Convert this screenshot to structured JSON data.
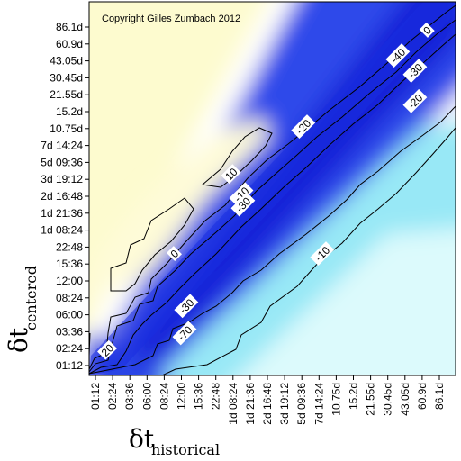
{
  "chart_data": {
    "type": "heatmap",
    "title": "",
    "copyright": "Copyright Gilles Zumbach 2012",
    "xlabel": {
      "symbol": "δt",
      "subscript": "historical"
    },
    "ylabel": {
      "symbol": "δt",
      "subscript": "centered"
    },
    "x_ticks": [
      "01:12",
      "02:24",
      "03:36",
      "06:00",
      "08:24",
      "12:00",
      "15:36",
      "22:48",
      "1d 08:24",
      "1d 21:36",
      "2d 16:48",
      "3d 19:12",
      "5d 09:36",
      "7d 14:24",
      "10.75d",
      "15.2d",
      "21.55d",
      "30.45d",
      "43.05d",
      "60.9d",
      "86.1d"
    ],
    "y_ticks": [
      "01:12",
      "02:24",
      "03:36",
      "06:00",
      "08:24",
      "12:00",
      "15:36",
      "22:48",
      "1d 08:24",
      "1d 21:36",
      "2d 16:48",
      "3d 19:12",
      "5d 09:36",
      "7d 14:24",
      "10.75d",
      "15.2d",
      "21.55d",
      "30.45d",
      "43.05d",
      "60.9d",
      "86.1d"
    ],
    "contour_levels": [
      -40,
      -30,
      -20,
      -10,
      0,
      10,
      20
    ],
    "contour_labels": [
      {
        "text": "0",
        "x": 19.3,
        "y": 19.8
      },
      {
        "text": "-40",
        "x": 17.6,
        "y": 18.3
      },
      {
        "text": "-30",
        "x": 18.6,
        "y": 17.4
      },
      {
        "text": "-20",
        "x": 18.6,
        "y": 15.6
      },
      {
        "text": "-20",
        "x": 12.1,
        "y": 14.1
      },
      {
        "text": "10",
        "x": 7.9,
        "y": 11.3
      },
      {
        "text": "-10",
        "x": 8.5,
        "y": 10.1
      },
      {
        "text": "-30",
        "x": 8.6,
        "y": 9.5
      },
      {
        "text": "0",
        "x": 4.6,
        "y": 6.6
      },
      {
        "text": "-10",
        "x": 13.2,
        "y": 6.6
      },
      {
        "text": "-30",
        "x": 5.3,
        "y": 3.5
      },
      {
        "text": "-70",
        "x": 5.2,
        "y": 1.9
      },
      {
        "text": "20",
        "x": 0.7,
        "y": 0.9
      }
    ]
  }
}
